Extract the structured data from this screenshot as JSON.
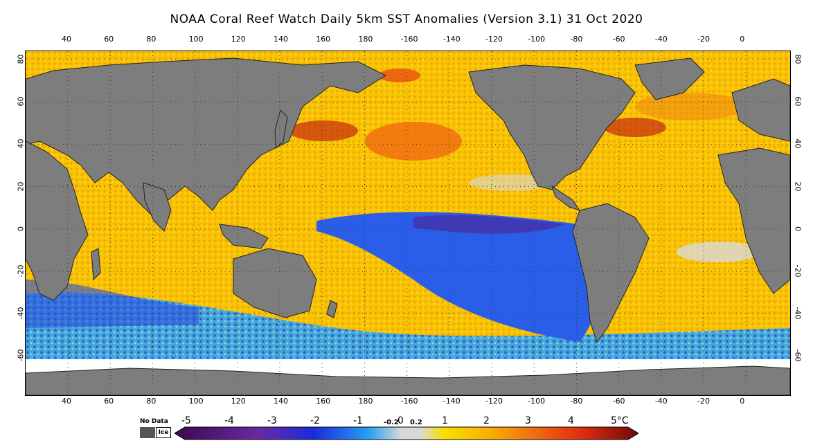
{
  "title": "NOAA Coral Reef Watch Daily 5km SST Anomalies (Version 3.1)  31 Oct 2020",
  "longitude_ticks": [
    "40",
    "60",
    "80",
    "100",
    "120",
    "140",
    "160",
    "180",
    "-160",
    "-140",
    "-120",
    "-100",
    "-80",
    "-60",
    "-40",
    "-20",
    "0"
  ],
  "latitude_ticks": [
    "80",
    "60",
    "40",
    "20",
    "0",
    "-20",
    "-40",
    "-60"
  ],
  "legend": {
    "no_data_label": "No Data",
    "ice_label": "Ice",
    "labels": [
      "-5",
      "-4",
      "-3",
      "-2",
      "-1",
      "-0.2",
      "0",
      "0.2",
      "1",
      "2",
      "3",
      "4",
      "5°C"
    ],
    "colors": {
      "no_data": "#555555",
      "land": "#7d7d7d",
      "neutral": "#d9d9d9",
      "cold_strong": "#3a0a50",
      "cold": "#2b3fd8",
      "cool": "#29a8f0",
      "warm": "#f8c400",
      "hot": "#f06a10",
      "very_hot": "#7a0a0a"
    }
  }
}
